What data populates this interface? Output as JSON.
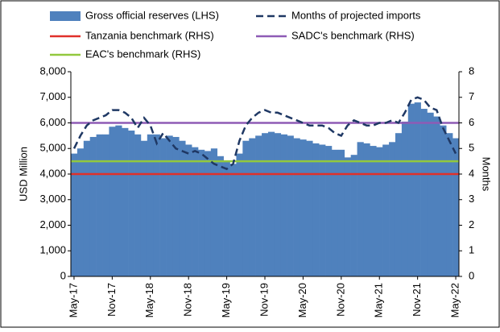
{
  "chart_data": {
    "type": "bar_line",
    "y_label": "USD Million",
    "y2_label": "Months",
    "categories": [
      "May-17",
      null,
      null,
      null,
      null,
      null,
      "Nov-17",
      null,
      null,
      null,
      null,
      null,
      "May-18",
      null,
      null,
      null,
      null,
      null,
      "Nov-18",
      null,
      null,
      null,
      null,
      null,
      "May-19",
      null,
      null,
      null,
      null,
      null,
      "Nov-19",
      null,
      null,
      null,
      null,
      null,
      "May-20",
      null,
      null,
      null,
      null,
      null,
      "Nov-20",
      null,
      null,
      null,
      null,
      null,
      "May-21",
      null,
      null,
      null,
      null,
      null,
      "Nov-21",
      null,
      null,
      null,
      null,
      null,
      "May-22"
    ],
    "ylim": [
      0,
      8000
    ],
    "yticks": [
      0,
      {
        "value": 1000,
        "label": "1,000"
      },
      {
        "value": 2000,
        "label": "2,000"
      },
      {
        "value": 3000,
        "label": "3,000"
      },
      {
        "value": 4000,
        "label": "4,000"
      },
      {
        "value": 5000,
        "label": "5,000"
      },
      {
        "value": 6000,
        "label": "6,000"
      },
      {
        "value": 7000,
        "label": "7,000"
      },
      {
        "value": 8000,
        "label": "8,000"
      }
    ],
    "y2lim": [
      0,
      8
    ],
    "y2ticks": [
      0,
      1,
      2,
      3,
      4,
      5,
      6,
      7,
      8
    ],
    "series": [
      {
        "name": "Gross official reserves (LHS)",
        "kind": "bar",
        "color": "#4f81bd",
        "values": [
          4800,
          5000,
          5300,
          5450,
          5550,
          5550,
          5850,
          5900,
          5800,
          5700,
          5550,
          5300,
          5550,
          5550,
          5400,
          5500,
          5450,
          5300,
          5150,
          5050,
          4950,
          4900,
          5000,
          4700,
          4500,
          4400,
          4800,
          5300,
          5400,
          5500,
          5600,
          5650,
          5600,
          5550,
          5500,
          5400,
          5350,
          5300,
          5200,
          5150,
          5100,
          4950,
          4950,
          4650,
          4750,
          5250,
          5200,
          5100,
          5050,
          5150,
          5250,
          5600,
          6050,
          6750,
          6800,
          6550,
          6400,
          6250,
          5900,
          5600,
          5400
        ]
      },
      {
        "name": "Months of projected imports",
        "kind": "line",
        "axis": "y2",
        "color": "#1f3864",
        "values": [
          5.0,
          5.5,
          5.9,
          6.1,
          6.2,
          6.3,
          6.5,
          6.5,
          6.4,
          6.2,
          5.8,
          6.2,
          5.9,
          5.2,
          5.6,
          5.3,
          5.0,
          4.9,
          4.8,
          4.9,
          4.8,
          4.6,
          4.4,
          4.3,
          4.2,
          4.4,
          5.3,
          5.9,
          6.2,
          6.4,
          6.5,
          6.4,
          6.4,
          6.3,
          6.2,
          6.1,
          6.0,
          5.9,
          5.9,
          5.9,
          5.8,
          5.6,
          5.5,
          5.9,
          6.1,
          6.0,
          5.9,
          5.9,
          6.0,
          6.0,
          6.1,
          6.0,
          6.4,
          6.9,
          7.0,
          6.9,
          6.6,
          6.5,
          5.8,
          5.3,
          4.8
        ]
      },
      {
        "name": "Tanzania benchmark (RHS)",
        "kind": "benchmark",
        "axis": "y2",
        "color": "#e0302a",
        "value": 4
      },
      {
        "name": "SADC's benchmark (RHS)",
        "kind": "benchmark",
        "axis": "y2",
        "color": "#8e5bb5",
        "value": 6
      },
      {
        "name": "EAC's benchmark (RHS)",
        "kind": "benchmark",
        "axis": "y2",
        "color": "#92c83e",
        "value": 4.5
      }
    ]
  }
}
